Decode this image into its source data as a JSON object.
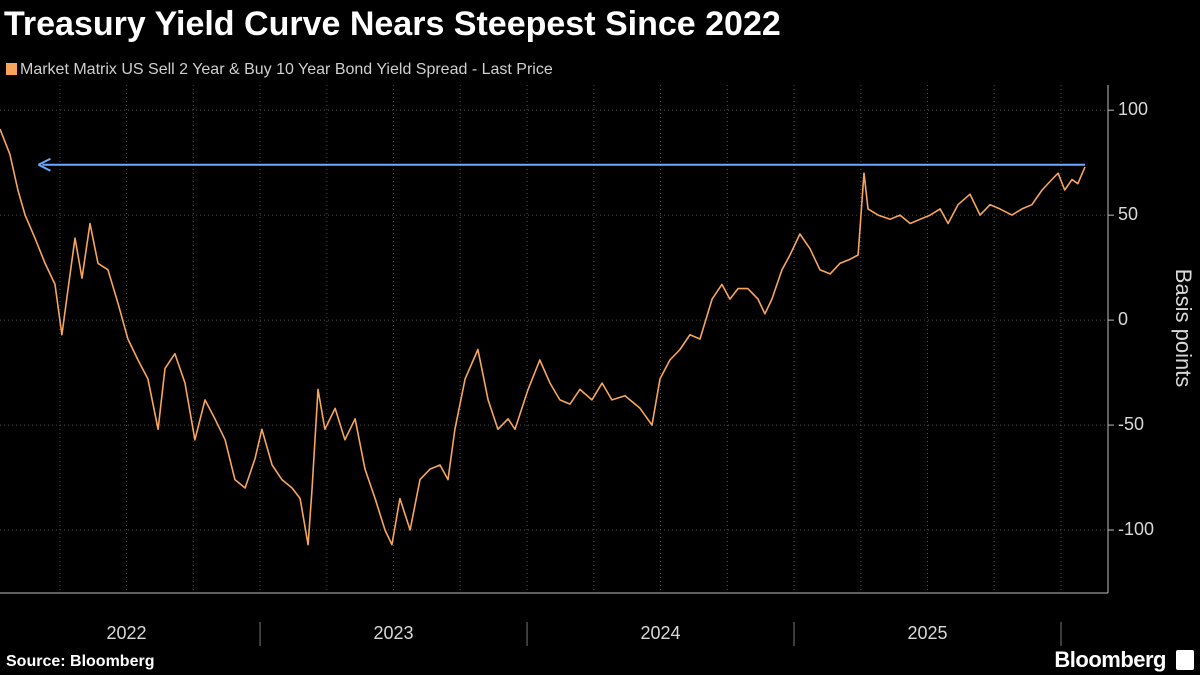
{
  "chart_data": {
    "type": "line",
    "title": "Treasury Yield Curve Nears Steepest Since 2022",
    "y_label": "Basis points",
    "source": "Source: Bloomberg",
    "brand": "Bloomberg",
    "series": [
      {
        "name": "Market Matrix US Sell 2 Year & Buy 10 Year Bond Yield Spread - Last Price",
        "color": "#f7a55c",
        "x": [
          2022.026,
          2022.063,
          2022.093,
          2022.12,
          2022.157,
          2022.195,
          2022.232,
          2022.258,
          2022.281,
          2022.307,
          2022.333,
          2022.363,
          2022.393,
          2022.43,
          2022.468,
          2022.505,
          2022.543,
          2022.58,
          2022.618,
          2022.644,
          2022.681,
          2022.719,
          2022.756,
          2022.794,
          2022.831,
          2022.869,
          2022.906,
          2022.944,
          2022.981,
          2023.007,
          2023.045,
          2023.082,
          2023.12,
          2023.15,
          2023.18,
          2023.195,
          2023.217,
          2023.243,
          2023.281,
          2023.318,
          2023.356,
          2023.393,
          2023.431,
          2023.468,
          2023.494,
          2023.524,
          2023.562,
          2023.599,
          2023.637,
          2023.674,
          2023.704,
          2023.73,
          2023.768,
          2023.816,
          2023.854,
          2023.891,
          2023.929,
          2023.955,
          2024.004,
          2024.048,
          2024.086,
          2024.123,
          2024.161,
          2024.198,
          2024.243,
          2024.281,
          2024.318,
          2024.367,
          2024.423,
          2024.468,
          2024.498,
          2024.535,
          2024.573,
          2024.61,
          2024.648,
          2024.693,
          2024.73,
          2024.76,
          2024.79,
          2024.827,
          2024.865,
          2024.891,
          2024.917,
          2024.955,
          2024.985,
          2025.022,
          2025.06,
          2025.097,
          2025.135,
          2025.172,
          2025.21,
          2025.24,
          2025.262,
          2025.277,
          2025.315,
          2025.36,
          2025.397,
          2025.435,
          2025.472,
          2025.51,
          2025.547,
          2025.577,
          2025.614,
          2025.659,
          2025.697,
          2025.734,
          2025.771,
          2025.816,
          2025.854,
          2025.891,
          2025.929,
          2025.966,
          2025.989,
          2026.014,
          2026.041,
          2026.063,
          2026.09
        ],
        "values": [
          91,
          79,
          62,
          50,
          39,
          27,
          17,
          -7,
          15,
          39,
          20,
          46,
          27,
          24,
          8,
          -9,
          -19,
          -28,
          -52,
          -23,
          -16,
          -30,
          -57,
          -38,
          -47,
          -57,
          -76,
          -80,
          -66,
          -52,
          -69,
          -76,
          -80,
          -85,
          -107,
          -80,
          -33,
          -52,
          -42,
          -57,
          -47,
          -71,
          -85,
          -100,
          -107,
          -85,
          -100,
          -76,
          -71,
          -69,
          -76,
          -52,
          -28,
          -14,
          -38,
          -52,
          -47,
          -52,
          -33,
          -19,
          -30,
          -38,
          -40,
          -33,
          -38,
          -30,
          -38,
          -36,
          -42,
          -50,
          -28,
          -19,
          -14,
          -7,
          -9,
          10,
          17,
          10,
          15,
          15,
          10,
          3,
          10,
          24,
          31,
          41,
          34,
          24,
          22,
          27,
          29,
          31,
          70,
          53,
          50,
          48,
          50,
          46,
          48,
          50,
          53,
          46,
          55,
          60,
          50,
          55,
          53,
          50,
          53,
          55,
          62,
          67,
          70,
          62,
          67,
          65,
          73
        ]
      }
    ],
    "reference_line": {
      "value": 74,
      "from": 2022.17,
      "to": 2026.09,
      "color": "#6fa8ff"
    },
    "xlim": [
      2022.026,
      2026.176
    ],
    "xticks": [
      {
        "value": 2022.5,
        "label": "2022"
      },
      {
        "value": 2023.5,
        "label": "2023"
      },
      {
        "value": 2024.5,
        "label": "2024"
      },
      {
        "value": 2025.5,
        "label": "2025"
      }
    ],
    "ylim": [
      -130,
      112
    ],
    "yticks": [
      -100,
      -50,
      0,
      50,
      100
    ],
    "grid": true
  }
}
